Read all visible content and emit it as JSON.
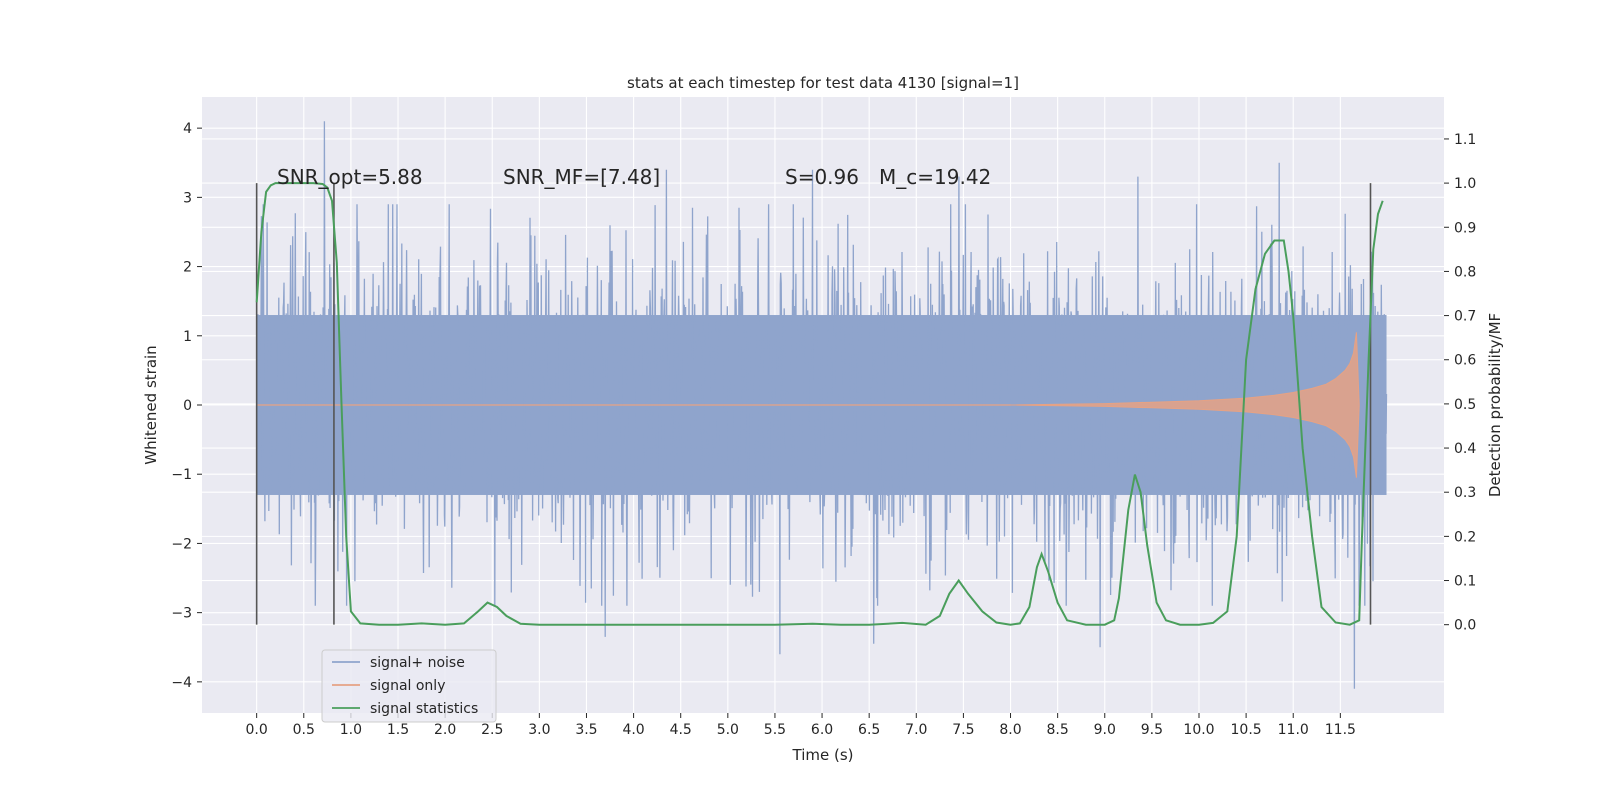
{
  "chart_data": {
    "type": "line",
    "title": "stats at each timestep for test data 4130 [signal=1]",
    "xlabel": "Time (s)",
    "ylabel_left": "Whitened strain",
    "ylabel_right": "Detection probability/MF",
    "xlim": [
      -0.58,
      12.6
    ],
    "ylim_left": [
      -4.45,
      4.45
    ],
    "ylim_right": [
      -0.2,
      1.195
    ],
    "x_ticks": [
      0.0,
      0.5,
      1.0,
      1.5,
      2.0,
      2.5,
      3.0,
      3.5,
      4.0,
      4.5,
      5.0,
      5.5,
      6.0,
      6.5,
      7.0,
      7.5,
      8.0,
      8.5,
      9.0,
      9.5,
      10.0,
      10.5,
      11.0,
      11.5
    ],
    "x_tick_labels": [
      "0.0",
      "0.5",
      "1.0",
      "1.5",
      "2.0",
      "2.5",
      "3.0",
      "3.5",
      "4.0",
      "4.5",
      "5.0",
      "5.5",
      "6.0",
      "6.5",
      "7.0",
      "7.5",
      "8.0",
      "8.5",
      "9.0",
      "9.5",
      "10.0",
      "10.5",
      "11.0",
      "11.5"
    ],
    "y_left_ticks": [
      4,
      3,
      2,
      1,
      0,
      -1,
      -2,
      -3,
      -4
    ],
    "y_left_tick_labels": [
      "4",
      "3",
      "2",
      "1",
      "0",
      "−1",
      "−2",
      "−3",
      "−4"
    ],
    "y_right_ticks": [
      1.1,
      1.0,
      0.9,
      0.8,
      0.7,
      0.6,
      0.5,
      0.4,
      0.3,
      0.2,
      0.1,
      0.0
    ],
    "y_right_tick_labels": [
      "1.1",
      "1.0",
      "0.9",
      "0.8",
      "0.7",
      "0.6",
      "0.5",
      "0.4",
      "0.3",
      "0.2",
      "0.1",
      "0.0"
    ],
    "grid": true,
    "legend_position": "lower-left",
    "annotations": [
      "SNR_opt=5.88",
      "SNR_MF=[7.48]",
      "S=0.96",
      "M_c=19.42"
    ],
    "window_markers_x": [
      0.0,
      0.82,
      11.82
    ],
    "series": [
      {
        "name": "signal+ noise",
        "color": "#8fa4cc",
        "axis": "left",
        "x_range": [
          0.0,
          11.99
        ],
        "noise_envelope": 1.3,
        "peak_values": [
          {
            "x": 0.72,
            "y": 4.1
          },
          {
            "x": 4.35,
            "y": 3.4
          },
          {
            "x": 5.9,
            "y": 3.4
          },
          {
            "x": 7.45,
            "y": 3.3
          },
          {
            "x": 9.35,
            "y": 3.3
          },
          {
            "x": 10.85,
            "y": 3.5
          },
          {
            "x": 3.7,
            "y": -3.35
          },
          {
            "x": 5.55,
            "y": -3.6
          },
          {
            "x": 6.55,
            "y": -3.45
          },
          {
            "x": 8.95,
            "y": -3.5
          },
          {
            "x": 11.65,
            "y": -4.1
          }
        ]
      },
      {
        "name": "signal only",
        "color": "#e6a284",
        "axis": "left",
        "x": [
          8.0,
          9.0,
          9.5,
          10.0,
          10.5,
          10.8,
          11.0,
          11.2,
          11.35,
          11.45,
          11.55,
          11.6,
          11.64,
          11.67,
          11.7
        ],
        "amplitude": [
          0.0,
          0.02,
          0.04,
          0.06,
          0.1,
          0.14,
          0.18,
          0.24,
          0.3,
          0.38,
          0.5,
          0.6,
          0.75,
          1.05,
          0.0
        ]
      },
      {
        "name": "signal statistics",
        "color": "#4a9e5c",
        "axis": "right",
        "x": [
          0.0,
          0.05,
          0.1,
          0.15,
          0.2,
          0.3,
          0.4,
          0.5,
          0.6,
          0.7,
          0.75,
          0.8,
          0.85,
          0.9,
          0.95,
          1.0,
          1.1,
          1.3,
          1.5,
          1.75,
          2.0,
          2.2,
          2.35,
          2.45,
          2.55,
          2.65,
          2.8,
          3.0,
          3.5,
          4.0,
          5.0,
          5.5,
          5.9,
          6.2,
          6.5,
          6.85,
          7.1,
          7.25,
          7.35,
          7.45,
          7.55,
          7.7,
          7.85,
          8.0,
          8.1,
          8.2,
          8.28,
          8.33,
          8.4,
          8.5,
          8.6,
          8.8,
          9.0,
          9.1,
          9.15,
          9.25,
          9.32,
          9.38,
          9.45,
          9.55,
          9.65,
          9.8,
          10.0,
          10.15,
          10.3,
          10.4,
          10.45,
          10.5,
          10.6,
          10.7,
          10.8,
          10.9,
          10.95,
          11.0,
          11.05,
          11.1,
          11.2,
          11.3,
          11.45,
          11.6,
          11.7,
          11.73,
          11.8,
          11.85,
          11.9,
          11.95
        ],
        "values": [
          0.73,
          0.89,
          0.98,
          0.995,
          1.0,
          1.0,
          1.0,
          1.0,
          1.0,
          0.998,
          0.99,
          0.96,
          0.82,
          0.5,
          0.2,
          0.03,
          0.003,
          0.0,
          0.0,
          0.003,
          0.0,
          0.003,
          0.03,
          0.05,
          0.04,
          0.02,
          0.002,
          0.0,
          0.0,
          0.0,
          0.0,
          0.0,
          0.002,
          0.0,
          0.0,
          0.004,
          0.0,
          0.02,
          0.07,
          0.1,
          0.07,
          0.03,
          0.005,
          0.0,
          0.003,
          0.04,
          0.13,
          0.16,
          0.12,
          0.05,
          0.01,
          0.0,
          0.0,
          0.01,
          0.06,
          0.26,
          0.34,
          0.3,
          0.18,
          0.05,
          0.01,
          0.0,
          0.0,
          0.004,
          0.03,
          0.2,
          0.4,
          0.6,
          0.76,
          0.84,
          0.87,
          0.87,
          0.8,
          0.7,
          0.55,
          0.4,
          0.2,
          0.04,
          0.005,
          0.0,
          0.01,
          0.2,
          0.6,
          0.85,
          0.93,
          0.96
        ]
      }
    ]
  }
}
